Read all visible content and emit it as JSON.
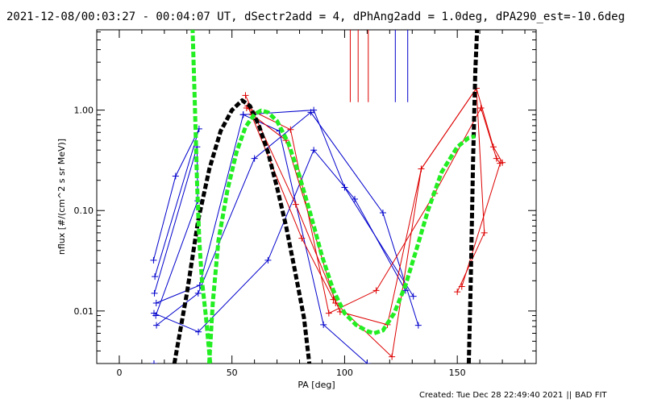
{
  "chart_data": {
    "type": "line",
    "title": "2021-12-08/00:03:27 - 00:04:07 UT, dSectr2add = 4, dPhAng2add = 1.0deg, dPA290_est=-10.6deg",
    "xlabel": "PA [deg]",
    "ylabel": "nflux [#/(cm^2 s sr MeV)]",
    "xlim": [
      -10,
      185
    ],
    "ylim": [
      0.003,
      6.3
    ],
    "yscale": "log",
    "grid": false,
    "x_ticks": [
      0,
      50,
      100,
      150
    ],
    "x_tick_labels": [
      "0",
      "50",
      "100",
      "150"
    ],
    "y_ticks": [
      0.01,
      0.1,
      1.0
    ],
    "y_tick_labels": [
      "0.01",
      "0.10",
      "1.00"
    ],
    "series": [
      {
        "color": "#0000cc",
        "marker": "+",
        "points": [
          [
            15.2,
            0.032
          ],
          [
            25,
            0.22
          ],
          [
            35.4,
            0.65
          ],
          [
            15.8,
            0.022
          ]
        ]
      },
      {
        "color": "#0000cc",
        "marker": "+",
        "points": [
          [
            15.6,
            0.015
          ],
          [
            34.5,
            0.43
          ],
          [
            34.8,
            0.125
          ],
          [
            16.2,
            0.009
          ]
        ]
      },
      {
        "color": "#0000cc",
        "marker": "+",
        "points": [
          [
            16.4,
            0.012
          ],
          [
            35.7,
            0.018
          ],
          [
            55,
            0.9
          ],
          [
            86.3,
            1.0
          ],
          [
            100,
            0.17
          ],
          [
            130.5,
            0.014
          ]
        ]
      },
      {
        "color": "#0000cc",
        "marker": "+",
        "points": [
          [
            16.5,
            0.0072
          ],
          [
            35,
            0.015
          ],
          [
            60,
            0.33
          ],
          [
            85,
            0.95
          ],
          [
            117,
            0.095
          ],
          [
            132.7,
            0.0072
          ]
        ]
      },
      {
        "color": "#0000cc",
        "marker": "+",
        "points": [
          [
            15.4,
            0.0095
          ],
          [
            35.1,
            0.0062
          ],
          [
            66,
            0.032
          ],
          [
            86.3,
            0.4
          ],
          [
            104.5,
            0.13
          ],
          [
            127,
            0.016
          ]
        ]
      },
      {
        "color": "#0000cc",
        "marker": "+",
        "points": [
          [
            15.4,
            0.003
          ],
          [
            15.4,
            0.003
          ]
        ]
      },
      {
        "color": "#0000cc",
        "marker": "+",
        "points": [
          [
            55,
            0.9
          ],
          [
            71,
            0.62
          ],
          [
            90.6,
            0.0073
          ],
          [
            110,
            0.003
          ]
        ]
      },
      {
        "color": "#dd0000",
        "marker": "+",
        "points": [
          [
            56,
            1.4
          ],
          [
            78.3,
            0.115
          ],
          [
            98,
            0.0098
          ],
          [
            119,
            0.0073
          ],
          [
            134,
            0.26
          ],
          [
            158.5,
            1.65
          ],
          [
            166,
            0.43
          ],
          [
            170,
            0.3
          ]
        ]
      },
      {
        "color": "#dd0000",
        "marker": "+",
        "points": [
          [
            56.5,
            1.05
          ],
          [
            76,
            0.64
          ],
          [
            93,
            0.0095
          ],
          [
            114,
            0.016
          ],
          [
            140,
            0.148
          ],
          [
            160.5,
            1.05
          ],
          [
            167.4,
            0.33
          ],
          [
            169,
            0.295
          ],
          [
            152,
            0.0175
          ]
        ]
      },
      {
        "color": "#dd0000",
        "marker": "+",
        "points": [
          [
            59,
            0.9
          ],
          [
            74,
            0.5
          ],
          [
            96,
            0.012
          ],
          [
            121,
            0.0035
          ],
          [
            134,
            0.26
          ],
          [
            158.5,
            1.65
          ],
          [
            162,
            0.06
          ],
          [
            150,
            0.0155
          ]
        ]
      },
      {
        "color": "#dd0000",
        "marker": "+",
        "points": [
          [
            57,
            1.1
          ],
          [
            81,
            0.053
          ],
          [
            95,
            0.013
          ]
        ]
      }
    ],
    "fits": [
      {
        "color": "#000000",
        "style": "dashed-thick",
        "points": [
          [
            23.8,
            0.0025
          ],
          [
            30,
            0.015
          ],
          [
            35,
            0.08
          ],
          [
            40,
            0.26
          ],
          [
            45,
            0.62
          ],
          [
            50,
            1.0
          ],
          [
            54.5,
            1.25
          ],
          [
            58,
            1.1
          ],
          [
            62,
            0.7
          ],
          [
            66,
            0.38
          ],
          [
            70,
            0.17
          ],
          [
            74,
            0.07
          ],
          [
            78,
            0.025
          ],
          [
            82,
            0.0085
          ],
          [
            84.5,
            0.0028
          ]
        ]
      },
      {
        "color": "#000000",
        "style": "dashed-thick",
        "points": [
          [
            155,
            0.0025
          ],
          [
            156,
            0.02
          ],
          [
            157,
            0.3
          ],
          [
            158,
            2.4
          ],
          [
            159,
            8
          ]
        ]
      },
      {
        "color": "#22ee22",
        "style": "dashed-thick",
        "points": [
          [
            32.4,
            8
          ],
          [
            33.5,
            1.2
          ],
          [
            34.5,
            0.19
          ],
          [
            35.5,
            0.05
          ],
          [
            36.7,
            0.02
          ],
          [
            38.5,
            0.0085
          ],
          [
            40.5,
            0.0028
          ]
        ]
      },
      {
        "color": "#22ee22",
        "style": "dashed-thick",
        "points": [
          [
            39.7,
            0.0025
          ],
          [
            41.5,
            0.012
          ],
          [
            44,
            0.05
          ],
          [
            48,
            0.16
          ],
          [
            52,
            0.38
          ],
          [
            56,
            0.68
          ],
          [
            60,
            0.91
          ],
          [
            63,
            0.99
          ],
          [
            66,
            0.95
          ],
          [
            70,
            0.78
          ],
          [
            75,
            0.47
          ],
          [
            80,
            0.22
          ],
          [
            85,
            0.09
          ],
          [
            90,
            0.035
          ],
          [
            95,
            0.016
          ],
          [
            100,
            0.0095
          ],
          [
            105,
            0.0073
          ],
          [
            110,
            0.0063
          ],
          [
            113,
            0.006
          ],
          [
            117,
            0.0064
          ],
          [
            122,
            0.0095
          ],
          [
            127,
            0.018
          ],
          [
            132,
            0.042
          ],
          [
            137,
            0.1
          ],
          [
            143,
            0.24
          ],
          [
            150,
            0.43
          ],
          [
            155,
            0.53
          ],
          [
            158,
            0.55
          ]
        ]
      }
    ],
    "annotations": {
      "red_vlines_x": [
        102.5,
        106,
        110.5
      ],
      "blue_vlines_x": [
        122.5,
        128
      ],
      "vline_top_y": 6.3,
      "vline_bottom_y": 1.2
    }
  },
  "footer": {
    "created": "Created: Tue Dec 28 22:49:40 2021",
    "separator": "||",
    "status": "BAD FIT"
  }
}
